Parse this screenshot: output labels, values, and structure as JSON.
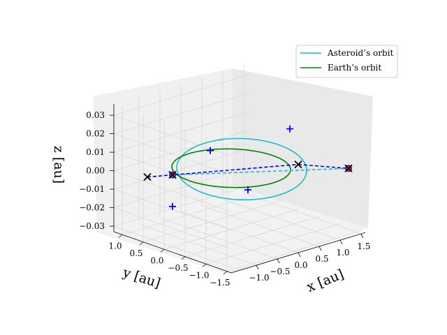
{
  "chart_data": {
    "type": "line",
    "projection": "3d",
    "title": "",
    "xlabel": "x [au]",
    "ylabel": "y [au]",
    "zlabel": "z [au]",
    "xlim": [
      -1.6,
      1.6
    ],
    "ylim": [
      -1.6,
      1.2
    ],
    "zlim": [
      -0.033,
      0.036
    ],
    "x_ticks": [
      "−1.0",
      "−0.5",
      "0.0",
      "0.5",
      "1.0",
      "1.5"
    ],
    "y_ticks": [
      "1.0",
      "0.5",
      "0.0",
      "−0.5",
      "−1.0",
      "−1.5"
    ],
    "z_ticks": [
      "0.03",
      "0.02",
      "0.01",
      "0.00",
      "−0.01",
      "−0.02",
      "−0.03"
    ],
    "grid": true,
    "legend": {
      "placement": "top-right",
      "entries": [
        "Asteroid’s orbit",
        "Earth’s orbit"
      ]
    },
    "series": [
      {
        "name": "Asteroid’s orbit",
        "color": "#17becf",
        "kind": "ellipse",
        "semi_major_au": 1.5,
        "semi_minor_au": 1.03,
        "center_x_au": 0.1,
        "center_y_au": -0.15,
        "rotation_deg": 25,
        "inclination_z_amp": 0.004
      },
      {
        "name": "Earth’s orbit",
        "color": "#008000",
        "kind": "circle",
        "radius_au": 1.0,
        "center_x_au": 0,
        "center_y_au": 0,
        "z": 0
      }
    ],
    "markers": {
      "plus": [
        {
          "x": 0.5,
          "y": -0.9,
          "z": 0.025
        },
        {
          "x": -0.3,
          "y": 0.2,
          "z": 0.01
        },
        {
          "x": 0.1,
          "y": -0.3,
          "z": -0.01
        },
        {
          "x": -0.8,
          "y": 0.6,
          "z": -0.02
        }
      ],
      "cross": [
        {
          "x": -1.4,
          "y": 0.6,
          "z": 0.0
        },
        {
          "x": -1.0,
          "y": 0.4,
          "z": 0.0
        },
        {
          "x": 1.0,
          "y": -0.6,
          "z": 0.0
        },
        {
          "x": 1.5,
          "y": -1.3,
          "z": 0.0
        }
      ],
      "dots": [
        {
          "x": -1.0,
          "y": 0.4,
          "z": 0.0
        },
        {
          "x": 1.5,
          "y": -1.3,
          "z": 0.0
        }
      ]
    },
    "dashed_lines": [
      {
        "color": "#17becf",
        "from": [
          -1.0,
          0.4,
          0.0
        ],
        "to": [
          1.5,
          -1.3,
          0.0
        ]
      },
      {
        "color": "#0000ff",
        "from": [
          -1.4,
          0.6,
          0.0
        ],
        "to": [
          1.0,
          -0.6,
          0.0
        ]
      },
      {
        "color": "#0000ff",
        "from": [
          1.0,
          -0.6,
          0.0
        ],
        "to": [
          1.5,
          -1.3,
          0.0
        ]
      }
    ]
  },
  "colors": {
    "asteroid": "#17becf",
    "earth": "#008000",
    "markers": "#0000ff",
    "cross": "#000000",
    "dot_fill": "#d62728"
  }
}
